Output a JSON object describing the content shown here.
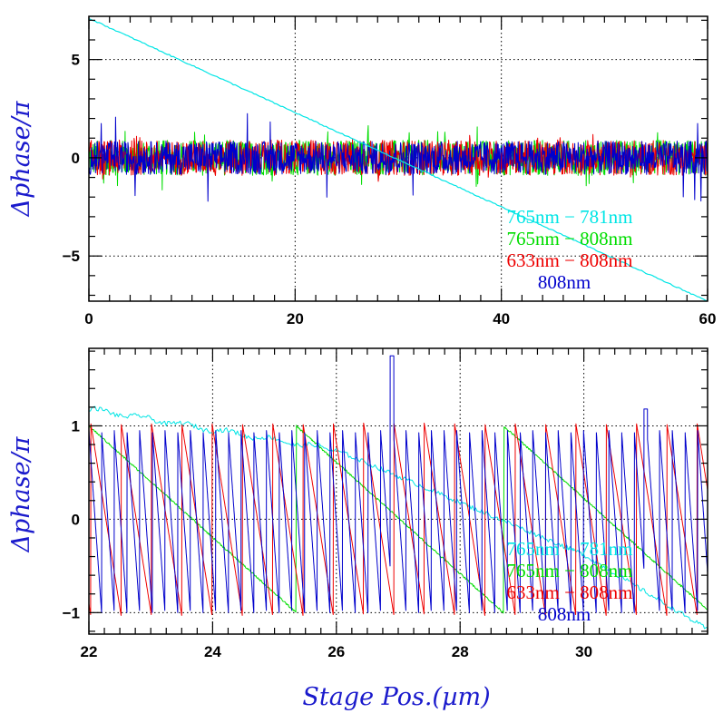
{
  "colors": {
    "c765_781": "#00e5e5",
    "c765_808": "#00dd00",
    "c633_808": "#ee0000",
    "c808": "#0000cc",
    "axis_title": "#1a1acc"
  },
  "chart_data": [
    {
      "type": "line",
      "panel": "top",
      "ylabel": "Δphase/π",
      "xlabel": "",
      "xlim": [
        0,
        60
      ],
      "ylim": [
        -7.3,
        7.2
      ],
      "xticks": [
        0,
        20,
        40,
        60
      ],
      "yticks": [
        -5,
        0,
        5
      ],
      "xtick_labels": [
        "0",
        "20",
        "40",
        "60"
      ],
      "ytick_labels": [
        "−5",
        "0",
        "5"
      ],
      "grid": true,
      "legend_position": "lower-right",
      "series": [
        {
          "name": "765nm − 781nm",
          "color_key": "c765_781",
          "style": "linear ramp",
          "x": [
            0,
            10,
            20,
            30,
            40,
            50,
            60
          ],
          "y": [
            7.1,
            4.7,
            2.3,
            -0.1,
            -2.5,
            -4.9,
            -7.3
          ]
        },
        {
          "name": "765nm − 808nm",
          "color_key": "c765_808",
          "style": "wrapped sawtooth, period ≈ 3.3 µm, range ±1",
          "x": [
            0,
            60
          ],
          "y": [
            1,
            -1
          ]
        },
        {
          "name": "633nm − 808nm",
          "color_key": "c633_808",
          "style": "wrapped sawtooth, period ≈ 0.5 µm, range ±1",
          "x": [
            0,
            60
          ],
          "y": [
            1,
            -1
          ]
        },
        {
          "name": "808nm",
          "color_key": "c808",
          "style": "wrapped sawtooth with noise, period ≈ 0.2 µm, range ±1",
          "x": [
            0,
            60
          ],
          "y": [
            2.2,
            -2.3
          ]
        }
      ]
    },
    {
      "type": "line",
      "panel": "bottom",
      "ylabel": "Δphase/π",
      "xlabel": "Stage Pos.(µm)",
      "xlim": [
        22,
        32
      ],
      "ylim": [
        -1.23,
        1.83
      ],
      "xticks": [
        22,
        24,
        26,
        28,
        30
      ],
      "yticks": [
        -1,
        0,
        1
      ],
      "xtick_labels": [
        "22",
        "24",
        "26",
        "28",
        "30"
      ],
      "ytick_labels": [
        "−1",
        "0",
        "1"
      ],
      "grid": true,
      "legend_position": "lower-right",
      "series": [
        {
          "name": "765nm − 781nm",
          "color_key": "c765_781",
          "style": "linear ramp",
          "x": [
            22,
            24,
            26,
            28,
            30,
            32
          ],
          "y": [
            1.18,
            0.95,
            0.7,
            0.25,
            -0.45,
            -1.2
          ]
        },
        {
          "name": "765nm − 808nm",
          "color_key": "c765_808",
          "style": "wrapped sawtooth",
          "x": [
            22,
            25.2,
            25.25,
            28.6,
            28.65,
            32
          ],
          "y": [
            1.0,
            -0.92,
            1.0,
            -0.98,
            1.0,
            -1.0
          ]
        },
        {
          "name": "633nm − 808nm",
          "color_key": "c633_808",
          "style": "wrapped sawtooth, period ≈ 0.5 µm",
          "x": [
            22,
            32
          ],
          "y": [
            1.05,
            -1.05
          ]
        },
        {
          "name": "808nm",
          "color_key": "c808",
          "style": "wrapped sawtooth, period ≈ 0.21 µm",
          "x": [
            22,
            26.9,
            32
          ],
          "y": [
            0.9,
            1.75,
            -0.9
          ]
        }
      ]
    }
  ]
}
